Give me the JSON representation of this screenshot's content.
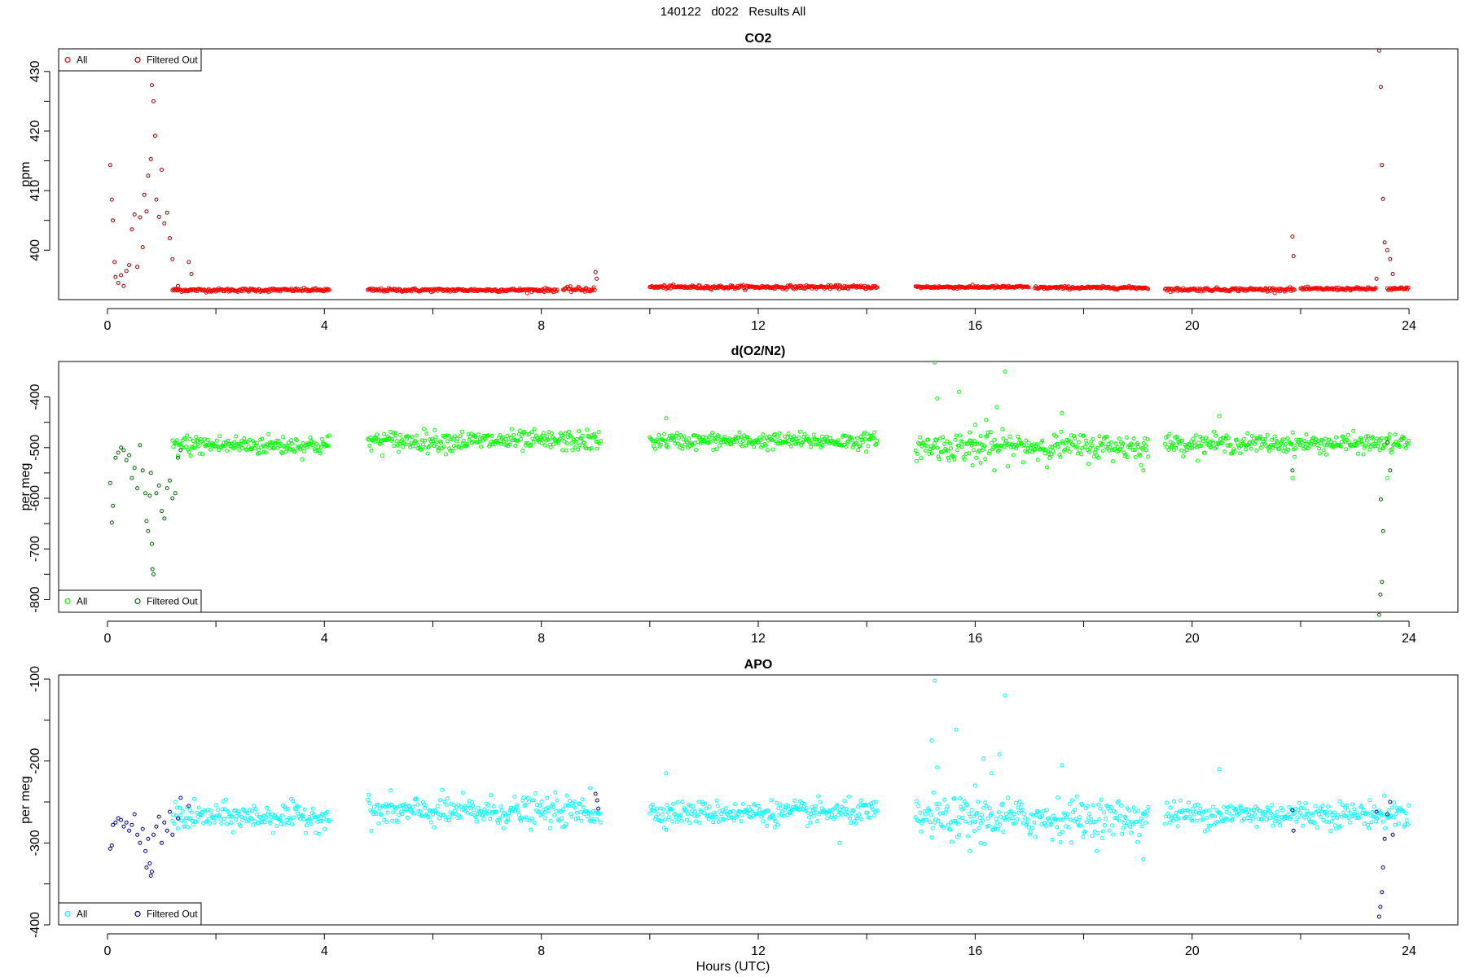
{
  "figure_title": "140122   d022   Results All",
  "xlabel": "Hours (UTC)",
  "chart_data": [
    {
      "type": "scatter",
      "title": "CO2",
      "ylabel": "ppm",
      "xlim": [
        -0.9,
        24.9
      ],
      "ylim": [
        391.7,
        433.8
      ],
      "xticks": [
        0,
        4,
        8,
        12,
        16,
        20,
        24
      ],
      "yticks": [
        400,
        410,
        420,
        430
      ],
      "legend_position": "top-left",
      "series": [
        {
          "name": "All",
          "color": "#ff0000"
        },
        {
          "name": "Filtered Out",
          "color": "#8b0000"
        }
      ],
      "segments": [
        {
          "start": 1.2,
          "end": 4.1,
          "y": 393.3,
          "jitter": 0.15
        },
        {
          "start": 4.8,
          "end": 8.3,
          "y": 393.3,
          "jitter": 0.15
        },
        {
          "start": 8.4,
          "end": 9.0,
          "y": 393.4,
          "jitter": 0.2
        },
        {
          "start": 10.0,
          "end": 14.2,
          "y": 393.8,
          "jitter": 0.15
        },
        {
          "start": 14.9,
          "end": 17.0,
          "y": 393.8,
          "jitter": 0.12
        },
        {
          "start": 17.1,
          "end": 19.2,
          "y": 393.7,
          "jitter": 0.12
        },
        {
          "start": 19.5,
          "end": 21.9,
          "y": 393.4,
          "jitter": 0.15
        },
        {
          "start": 22.0,
          "end": 23.4,
          "y": 393.5,
          "jitter": 0.12
        },
        {
          "start": 23.6,
          "end": 24.0,
          "y": 393.5,
          "jitter": 0.15
        }
      ],
      "filtered_points": [
        [
          0.05,
          414.3
        ],
        [
          0.08,
          408.5
        ],
        [
          0.1,
          405.0
        ],
        [
          0.13,
          398.0
        ],
        [
          0.15,
          395.5
        ],
        [
          0.2,
          394.5
        ],
        [
          0.25,
          395.8
        ],
        [
          0.3,
          394.0
        ],
        [
          0.35,
          396.5
        ],
        [
          0.4,
          397.5
        ],
        [
          0.45,
          403.5
        ],
        [
          0.5,
          406.0
        ],
        [
          0.55,
          397.2
        ],
        [
          0.6,
          405.5
        ],
        [
          0.65,
          400.5
        ],
        [
          0.68,
          409.3
        ],
        [
          0.72,
          406.5
        ],
        [
          0.75,
          412.5
        ],
        [
          0.8,
          415.3
        ],
        [
          0.82,
          427.7
        ],
        [
          0.85,
          425.0
        ],
        [
          0.88,
          419.2
        ],
        [
          0.9,
          408.5
        ],
        [
          0.95,
          405.6
        ],
        [
          1.0,
          413.5
        ],
        [
          1.05,
          404.5
        ],
        [
          1.1,
          406.3
        ],
        [
          1.15,
          402.0
        ],
        [
          1.2,
          398.5
        ],
        [
          1.3,
          394.0
        ],
        [
          1.5,
          398.0
        ],
        [
          1.55,
          396.0
        ],
        [
          9.0,
          396.3
        ],
        [
          9.02,
          395.2
        ],
        [
          21.85,
          402.3
        ],
        [
          21.87,
          399.0
        ],
        [
          23.45,
          433.5
        ],
        [
          23.48,
          427.4
        ],
        [
          23.5,
          414.3
        ],
        [
          23.52,
          408.6
        ],
        [
          23.55,
          401.3
        ],
        [
          23.6,
          400.0
        ],
        [
          23.65,
          398.5
        ],
        [
          23.7,
          396.0
        ],
        [
          23.4,
          395.2
        ]
      ]
    },
    {
      "type": "scatter",
      "title": "d(O2/N2)",
      "ylabel": "per meg",
      "xlim": [
        -0.9,
        24.9
      ],
      "ylim": [
        -825,
        -330
      ],
      "xticks": [
        0,
        4,
        8,
        12,
        16,
        20,
        24
      ],
      "yticks": [
        -400,
        -500,
        -600,
        -700,
        -800
      ],
      "legend_position": "bottom-left",
      "series": [
        {
          "name": "All",
          "color": "#00ff00"
        },
        {
          "name": "Filtered Out",
          "color": "#006400"
        }
      ],
      "segments": [
        {
          "start": 1.2,
          "end": 4.1,
          "y": -495,
          "jitter": 10
        },
        {
          "start": 4.8,
          "end": 9.1,
          "y": -487,
          "jitter": 10
        },
        {
          "start": 10.0,
          "end": 14.2,
          "y": -487,
          "jitter": 8
        },
        {
          "start": 14.9,
          "end": 19.2,
          "y": -498,
          "jitter": 13
        },
        {
          "start": 19.5,
          "end": 24.0,
          "y": -492,
          "jitter": 9
        }
      ],
      "extra_points": [
        [
          15.25,
          -332
        ],
        [
          15.3,
          -403
        ],
        [
          15.7,
          -390
        ],
        [
          16.55,
          -350
        ],
        [
          16.4,
          -420
        ],
        [
          16.2,
          -445
        ],
        [
          16.0,
          -455
        ],
        [
          15.9,
          -470
        ],
        [
          16.1,
          -530
        ],
        [
          15.95,
          -535
        ],
        [
          16.35,
          -545
        ],
        [
          17.6,
          -432
        ],
        [
          10.3,
          -442
        ],
        [
          20.5,
          -438
        ],
        [
          19.1,
          -545
        ],
        [
          21.85,
          -560
        ],
        [
          23.6,
          -560
        ],
        [
          15.5,
          -520
        ]
      ],
      "filtered_points": [
        [
          0.05,
          -570
        ],
        [
          0.08,
          -648
        ],
        [
          0.1,
          -615
        ],
        [
          0.15,
          -520
        ],
        [
          0.2,
          -510
        ],
        [
          0.25,
          -500
        ],
        [
          0.3,
          -505
        ],
        [
          0.35,
          -525
        ],
        [
          0.4,
          -515
        ],
        [
          0.45,
          -560
        ],
        [
          0.5,
          -540
        ],
        [
          0.55,
          -580
        ],
        [
          0.6,
          -495
        ],
        [
          0.65,
          -545
        ],
        [
          0.7,
          -590
        ],
        [
          0.72,
          -645
        ],
        [
          0.75,
          -665
        ],
        [
          0.78,
          -595
        ],
        [
          0.8,
          -550
        ],
        [
          0.82,
          -690
        ],
        [
          0.83,
          -740
        ],
        [
          0.85,
          -750
        ],
        [
          0.9,
          -590
        ],
        [
          0.95,
          -575
        ],
        [
          1.0,
          -625
        ],
        [
          1.05,
          -640
        ],
        [
          1.1,
          -580
        ],
        [
          1.15,
          -565
        ],
        [
          1.2,
          -600
        ],
        [
          1.25,
          -590
        ],
        [
          1.3,
          -520
        ],
        [
          1.35,
          -505
        ],
        [
          21.85,
          -545
        ],
        [
          23.45,
          -830
        ],
        [
          23.47,
          -790
        ],
        [
          23.5,
          -765
        ],
        [
          23.52,
          -665
        ],
        [
          23.48,
          -602
        ],
        [
          23.6,
          -490
        ],
        [
          23.65,
          -545
        ]
      ]
    },
    {
      "type": "scatter",
      "title": "APO",
      "ylabel": "per meg",
      "xlim": [
        -0.9,
        24.9
      ],
      "ylim": [
        -400,
        -95
      ],
      "xticks": [
        0,
        4,
        8,
        12,
        16,
        20,
        24
      ],
      "yticks": [
        -100,
        -200,
        -300,
        -400
      ],
      "legend_position": "bottom-left",
      "series": [
        {
          "name": "All",
          "color": "#00ffff"
        },
        {
          "name": "Filtered Out",
          "color": "#00008b"
        }
      ],
      "segments": [
        {
          "start": 1.2,
          "end": 4.1,
          "y": -268,
          "jitter": 8
        },
        {
          "start": 4.8,
          "end": 9.1,
          "y": -262,
          "jitter": 9
        },
        {
          "start": 10.0,
          "end": 14.2,
          "y": -263,
          "jitter": 7
        },
        {
          "start": 14.9,
          "end": 19.2,
          "y": -270,
          "jitter": 12
        },
        {
          "start": 19.5,
          "end": 24.0,
          "y": -265,
          "jitter": 8
        }
      ],
      "extra_points": [
        [
          15.25,
          -102
        ],
        [
          15.2,
          -175
        ],
        [
          15.3,
          -208
        ],
        [
          15.65,
          -162
        ],
        [
          16.55,
          -120
        ],
        [
          16.45,
          -192
        ],
        [
          16.15,
          -197
        ],
        [
          16.3,
          -215
        ],
        [
          16.0,
          -230
        ],
        [
          17.6,
          -205
        ],
        [
          10.3,
          -215
        ],
        [
          20.5,
          -210
        ],
        [
          15.9,
          -310
        ],
        [
          16.1,
          -300
        ],
        [
          19.1,
          -320
        ],
        [
          15.7,
          -290
        ],
        [
          8.9,
          -233
        ],
        [
          13.5,
          -300
        ]
      ],
      "filtered_points": [
        [
          0.05,
          -307
        ],
        [
          0.08,
          -303
        ],
        [
          0.1,
          -278
        ],
        [
          0.15,
          -275
        ],
        [
          0.2,
          -270
        ],
        [
          0.25,
          -272
        ],
        [
          0.3,
          -280
        ],
        [
          0.35,
          -275
        ],
        [
          0.4,
          -285
        ],
        [
          0.45,
          -278
        ],
        [
          0.5,
          -265
        ],
        [
          0.55,
          -290
        ],
        [
          0.6,
          -300
        ],
        [
          0.65,
          -283
        ],
        [
          0.7,
          -310
        ],
        [
          0.72,
          -330
        ],
        [
          0.75,
          -295
        ],
        [
          0.78,
          -325
        ],
        [
          0.8,
          -340
        ],
        [
          0.82,
          -335
        ],
        [
          0.85,
          -290
        ],
        [
          0.9,
          -280
        ],
        [
          0.95,
          -268
        ],
        [
          1.0,
          -300
        ],
        [
          1.05,
          -275
        ],
        [
          1.1,
          -285
        ],
        [
          1.15,
          -262
        ],
        [
          1.2,
          -290
        ],
        [
          1.3,
          -270
        ],
        [
          1.35,
          -245
        ],
        [
          1.5,
          -255
        ],
        [
          9.0,
          -240
        ],
        [
          9.03,
          -248
        ],
        [
          9.05,
          -258
        ],
        [
          21.85,
          -260
        ],
        [
          21.87,
          -285
        ],
        [
          23.45,
          -390
        ],
        [
          23.47,
          -378
        ],
        [
          23.5,
          -360
        ],
        [
          23.52,
          -330
        ],
        [
          23.55,
          -295
        ],
        [
          23.6,
          -265
        ],
        [
          23.65,
          -250
        ],
        [
          23.7,
          -290
        ],
        [
          23.4,
          -262
        ]
      ]
    }
  ]
}
